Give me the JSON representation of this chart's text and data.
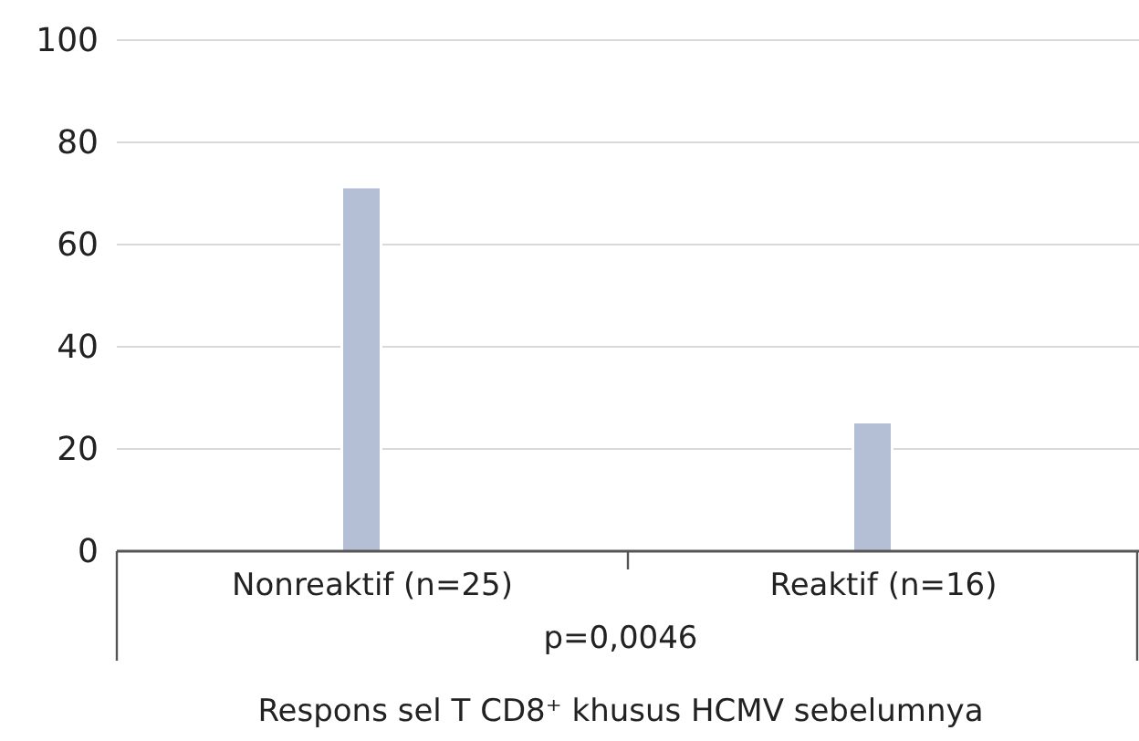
{
  "chart_data": {
    "type": "bar",
    "categories": [
      "Nonreaktif (n=25)",
      "Reaktif (n=16)"
    ],
    "values": [
      71,
      25
    ],
    "color": "#b4bfd6",
    "ylim": [
      0,
      100
    ],
    "yticks": [
      0,
      20,
      40,
      60,
      80,
      100
    ],
    "grid": "y",
    "xlabel": "Respons sel T CD8⁺ khusus HCMV sebelumnya",
    "annotations": [
      "p=0,0046"
    ]
  }
}
